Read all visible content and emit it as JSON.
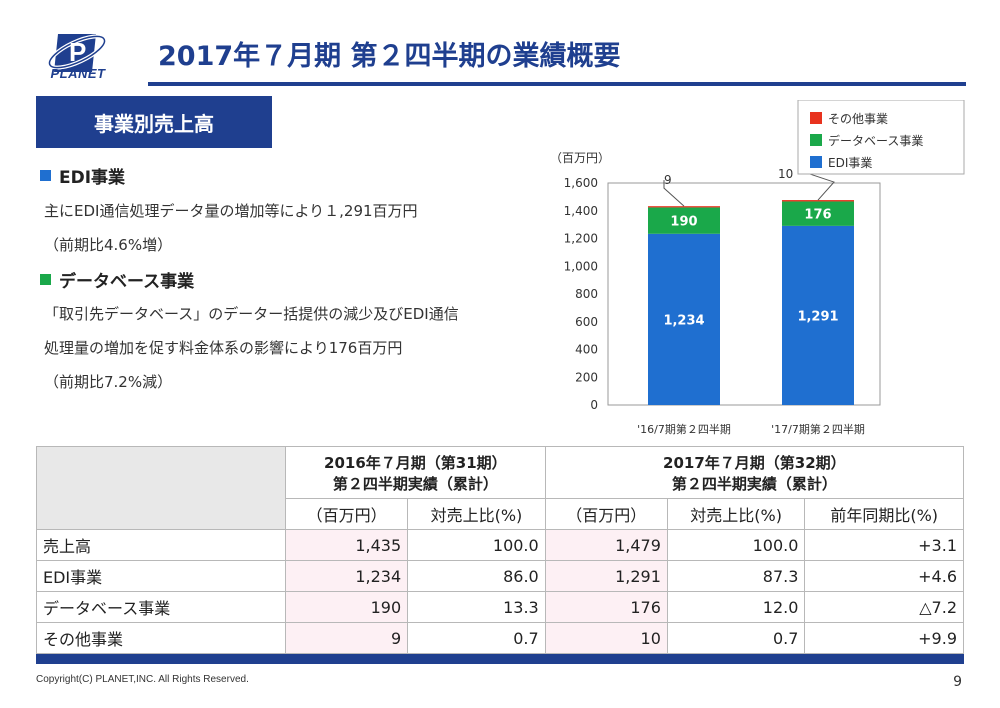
{
  "logo": {
    "text": "PLANET",
    "icon": "planet-logo-icon"
  },
  "title": "2017年７月期 第２四半期の業績概要",
  "section_label": "事業別売上高",
  "edi": {
    "heading": "EDI事業",
    "line1": "主にEDI通信処理データ量の増加等により１,291百万円",
    "line2": "（前期比4.6%増）",
    "color": "#1f6fd0"
  },
  "db": {
    "heading": "データベース事業",
    "line1": "「取引先データベース」のデーター括提供の減少及びEDI通信",
    "line2": "処理量の増加を促す料金体系の影響により176百万円",
    "line3": "（前期比7.2%減）",
    "color": "#1aa84a"
  },
  "chart_data": {
    "type": "bar",
    "stacked": true,
    "unit_label": "（百万円）",
    "categories": [
      "'16/7期第２四半期",
      "'17/7期第２四半期"
    ],
    "series": [
      {
        "name": "EDI事業",
        "values": [
          1234,
          1291
        ],
        "labels": [
          "1,234",
          "1,291"
        ],
        "color": "#1f6fd0"
      },
      {
        "name": "データベース事業",
        "values": [
          190,
          176
        ],
        "labels": [
          "190",
          "176"
        ],
        "color": "#1aa84a"
      },
      {
        "name": "その他事業",
        "values": [
          9,
          10
        ],
        "labels": [
          "9",
          "10"
        ],
        "color": "#e8321e"
      }
    ],
    "ylim": [
      0,
      1600
    ],
    "yticks": [
      "0",
      "200",
      "400",
      "600",
      "800",
      "1,000",
      "1,200",
      "1,400",
      "1,600"
    ],
    "legend_position": "top-right"
  },
  "table": {
    "col_group1": "2016年７月期（第31期）",
    "col_group1b": "第２四半期実績（累計）",
    "col_group2": "2017年７月期（第32期）",
    "col_group2b": "第２四半期実績（累計）",
    "sub_headers": [
      "（百万円）",
      "対売上比(%)",
      "（百万円）",
      "対売上比(%)",
      "前年同期比(%)"
    ],
    "rows": [
      {
        "label": "売上高",
        "v": [
          "1,435",
          "100.0",
          "1,479",
          "100.0",
          "+3.1"
        ]
      },
      {
        "label": "EDI事業",
        "v": [
          "1,234",
          "86.0",
          "1,291",
          "87.3",
          "+4.6"
        ]
      },
      {
        "label": "データベース事業",
        "v": [
          "190",
          "13.3",
          "176",
          "12.0",
          "△7.2"
        ]
      },
      {
        "label": "その他事業",
        "v": [
          "9",
          "0.7",
          "10",
          "0.7",
          "+9.9"
        ]
      }
    ]
  },
  "footer": {
    "copyright": "Copyright(C) PLANET,INC. All Rights Reserved.",
    "page": "9"
  }
}
